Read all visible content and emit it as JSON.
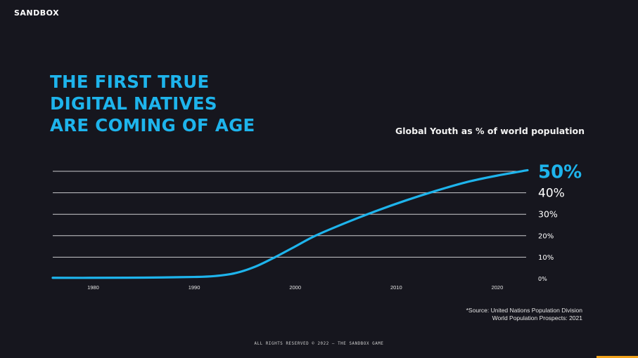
{
  "brand": {
    "logo_text": "SANDBOX"
  },
  "headline": {
    "lines": [
      "THE FIRST TRUE",
      "DIGITAL NATIVES",
      "ARE COMING OF AGE"
    ]
  },
  "chart_data": {
    "type": "line",
    "title": "Global Youth as % of world population",
    "xlabel": "",
    "ylabel": "",
    "x_ticks": [
      "1980",
      "1990",
      "2000",
      "2010",
      "2020"
    ],
    "y_ticks": [
      "0%",
      "10%",
      "20%",
      "30%",
      "40%",
      "50%"
    ],
    "xlim": [
      1976,
      2023
    ],
    "ylim": [
      0,
      50
    ],
    "grid": true,
    "series": [
      {
        "color": "#1eb4ec",
        "x": [
          1976,
          1980,
          1985,
          1990,
          1992,
          1994,
          1996,
          1998,
          2000,
          2002,
          2005,
          2008,
          2011,
          2014,
          2017,
          2020,
          2023
        ],
        "y": [
          0.4,
          0.4,
          0.5,
          0.8,
          1.2,
          2.5,
          5.5,
          10,
          15,
          20,
          26,
          31.5,
          36.5,
          41,
          45,
          48,
          50.5
        ]
      }
    ],
    "colors": {
      "line": "#1eb4ec",
      "grid": "#ffffff",
      "highlight_tick": "#1eb4ec"
    }
  },
  "source": {
    "line1": "*Source: United Nations Population Division",
    "line2": "World Population Prospects: 2021"
  },
  "footer": {
    "text": "ALL RIGHTS RESERVED © 2022 — THE SANDBOX GAME"
  }
}
